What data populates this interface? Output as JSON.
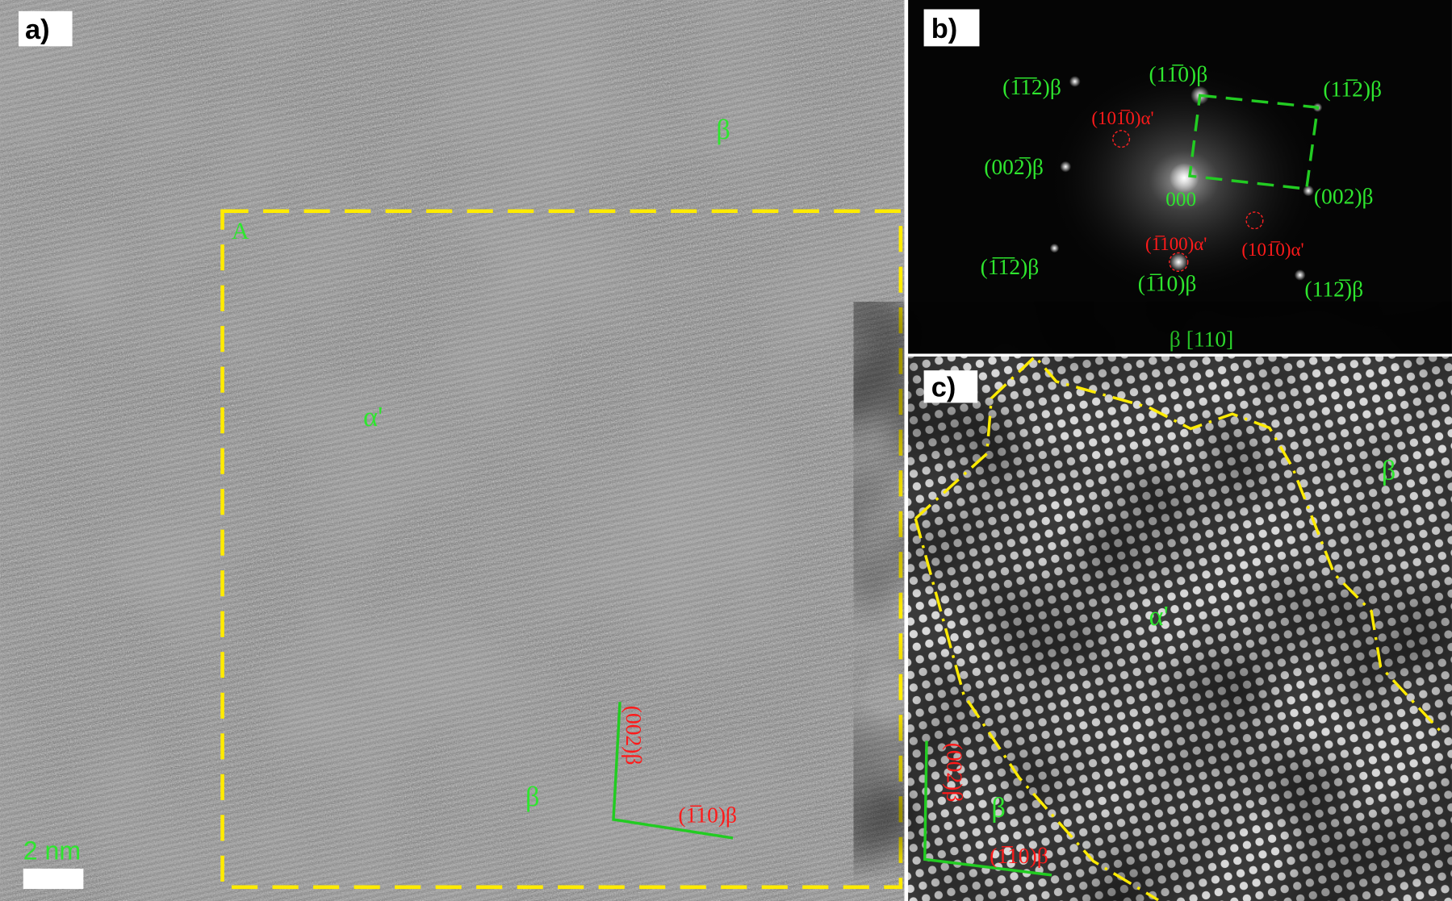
{
  "panels": {
    "a": {
      "label": "a)",
      "region_label": "A",
      "phase_top": "β",
      "phase_center": "α'",
      "phase_bottom": "β",
      "axis_vertical": "(002)β",
      "axis_horizontal": "(1̅10)β",
      "scale_bar": "2 nm"
    },
    "b": {
      "label": "b)",
      "zone_axis": "β [110]",
      "center": "000",
      "spots": [
        {
          "text": "(1̅1̅2)β",
          "phase": "beta"
        },
        {
          "text": "(11̅0)β",
          "phase": "beta"
        },
        {
          "text": "(11̅2)β",
          "phase": "beta"
        },
        {
          "text": "(101̅0)α'",
          "phase": "alpha"
        },
        {
          "text": "(002̅)β",
          "phase": "beta"
        },
        {
          "text": "(002)β",
          "phase": "beta"
        },
        {
          "text": "(1̅100)α'",
          "phase": "alpha"
        },
        {
          "text": "(101̅0)α'",
          "phase": "alpha"
        },
        {
          "text": "(1̅1̅2)β",
          "phase": "beta"
        },
        {
          "text": "(1̅10)β",
          "phase": "beta"
        },
        {
          "text": "(112̅)β",
          "phase": "beta"
        }
      ]
    },
    "c": {
      "label": "c)",
      "phase_top": "β",
      "phase_center": "α'",
      "phase_bottom": "β",
      "axis_vertical": "(002)β",
      "axis_horizontal": "(1̅10)β"
    }
  },
  "colors": {
    "beta_label": "#2ee62e",
    "alpha_label": "#ff1a1a",
    "boundary": "#ffeb00"
  }
}
